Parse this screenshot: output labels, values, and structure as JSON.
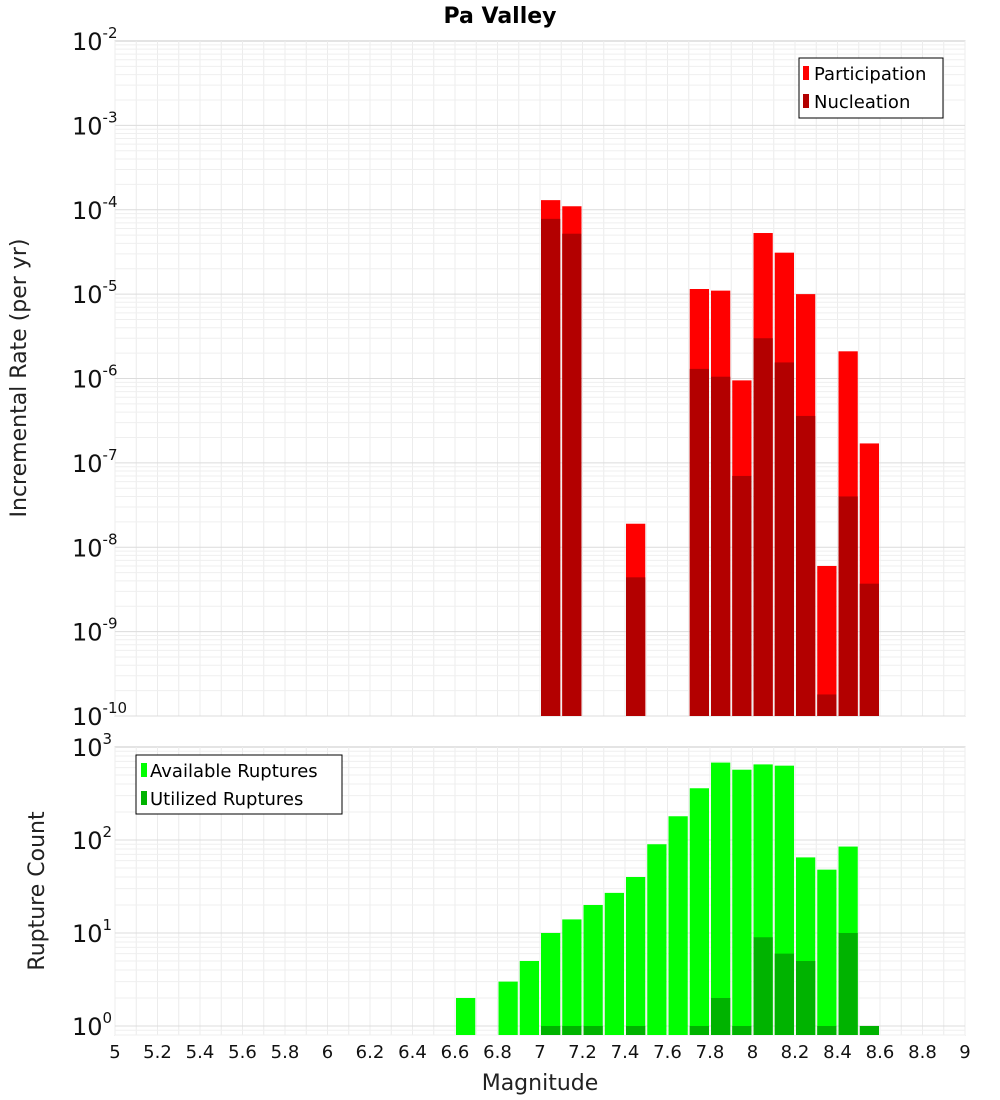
{
  "chart_data": [
    {
      "type": "bar",
      "title": "Pa Valley",
      "xlabel": "Magnitude",
      "ylabel": "Incremental Rate (per yr)",
      "yscale": "log",
      "ylim": [
        1e-10,
        0.01
      ],
      "xlim": [
        5,
        9
      ],
      "grid": true,
      "legend_position": "top-right",
      "series": [
        {
          "name": "Participation",
          "color": "#ff0000",
          "x": [
            7.05,
            7.15,
            7.45,
            7.75,
            7.85,
            7.95,
            8.05,
            8.15,
            8.25,
            8.35,
            8.45,
            8.55
          ],
          "values": [
            0.00013,
            0.00011,
            1.9e-08,
            1.15e-05,
            1.1e-05,
            9.5e-07,
            5.3e-05,
            3.1e-05,
            1e-05,
            6e-09,
            2.1e-06,
            1.7e-07
          ]
        },
        {
          "name": "Nucleation",
          "color": "#b30000",
          "x": [
            7.05,
            7.15,
            7.45,
            7.75,
            7.85,
            7.95,
            8.05,
            8.15,
            8.25,
            8.35,
            8.45,
            8.55
          ],
          "values": [
            7.8e-05,
            5.2e-05,
            4.4e-09,
            1.3e-06,
            1.05e-06,
            7e-08,
            3e-06,
            1.55e-06,
            3.6e-07,
            1.8e-10,
            4e-08,
            3.7e-09
          ]
        }
      ]
    },
    {
      "type": "bar",
      "xlabel": "Magnitude",
      "ylabel": "Rupture Count",
      "yscale": "log",
      "ylim": [
        0.8,
        1000
      ],
      "xlim": [
        5,
        9
      ],
      "xticks": [
        "5",
        "5.2",
        "5.4",
        "5.6",
        "5.8",
        "6",
        "6.2",
        "6.4",
        "6.6",
        "6.8",
        "7",
        "7.2",
        "7.4",
        "7.6",
        "7.8",
        "8",
        "8.2",
        "8.4",
        "8.6",
        "8.8",
        "9"
      ],
      "grid": true,
      "legend_position": "top-left",
      "series": [
        {
          "name": "Available Ruptures",
          "color": "#00ff00",
          "x": [
            6.65,
            6.85,
            6.95,
            7.05,
            7.15,
            7.25,
            7.35,
            7.45,
            7.55,
            7.65,
            7.75,
            7.85,
            7.95,
            8.05,
            8.15,
            8.25,
            8.35,
            8.45
          ],
          "values": [
            2,
            3,
            5,
            10,
            14,
            20,
            27,
            40,
            90,
            180,
            360,
            680,
            570,
            650,
            630,
            65,
            48,
            85
          ]
        },
        {
          "name": "Utilized Ruptures",
          "color": "#00b300",
          "x": [
            7.05,
            7.15,
            7.25,
            7.45,
            7.75,
            7.85,
            7.95,
            8.05,
            8.15,
            8.25,
            8.35,
            8.45,
            8.55
          ],
          "values": [
            1,
            1,
            1,
            1,
            1,
            2,
            1,
            9,
            6,
            5,
            1,
            10,
            1
          ]
        }
      ]
    }
  ]
}
